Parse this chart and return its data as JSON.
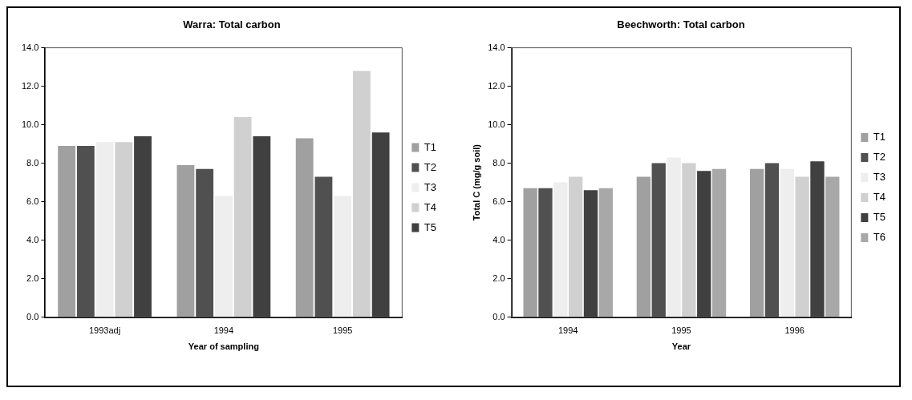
{
  "chart_data": [
    {
      "type": "bar",
      "title": "Warra: Total carbon",
      "xlabel": "Year of sampling",
      "categories": [
        "1993adj",
        "1994",
        "1995"
      ],
      "ylim": [
        0,
        14
      ],
      "yticks": [
        {
          "value": 0,
          "label": "0.0"
        },
        {
          "value": 2,
          "label": "2.0"
        },
        {
          "value": 4,
          "label": "4.0"
        },
        {
          "value": 6,
          "label": "6.0"
        },
        {
          "value": 8,
          "label": "8.0"
        },
        {
          "value": 10,
          "label": "10.0"
        },
        {
          "value": 12,
          "label": "12.0"
        },
        {
          "value": 14,
          "label": "14.0"
        }
      ],
      "grid": false,
      "legend": "right",
      "series": [
        {
          "name": "T1",
          "color": "#a0a0a0",
          "values": [
            8.9,
            7.9,
            9.3
          ]
        },
        {
          "name": "T2",
          "color": "#505050",
          "values": [
            8.9,
            7.7,
            7.3
          ]
        },
        {
          "name": "T3",
          "color": "#eeeeee",
          "values": [
            9.1,
            6.3,
            6.3
          ]
        },
        {
          "name": "T4",
          "color": "#d0d0d0",
          "values": [
            9.1,
            10.4,
            12.8
          ]
        },
        {
          "name": "T5",
          "color": "#404040",
          "values": [
            9.4,
            9.4,
            9.6
          ]
        }
      ]
    },
    {
      "type": "bar",
      "title": "Beechworth: Total carbon",
      "xlabel": "Year",
      "ylabel": "Total C (mg/g soil)",
      "categories": [
        "1994",
        "1995",
        "1996"
      ],
      "ylim": [
        0,
        14
      ],
      "yticks": [
        {
          "value": 0,
          "label": "0.0"
        },
        {
          "value": 2,
          "label": "2.0"
        },
        {
          "value": 4,
          "label": "4.0"
        },
        {
          "value": 6,
          "label": "6.0"
        },
        {
          "value": 8,
          "label": "8.0"
        },
        {
          "value": 10,
          "label": "10.0"
        },
        {
          "value": 12,
          "label": "12.0"
        },
        {
          "value": 14,
          "label": "14.0"
        }
      ],
      "grid": false,
      "legend": "right",
      "series": [
        {
          "name": "T1",
          "color": "#a0a0a0",
          "values": [
            6.7,
            7.3,
            7.7
          ]
        },
        {
          "name": "T2",
          "color": "#505050",
          "values": [
            6.7,
            8.0,
            8.0
          ]
        },
        {
          "name": "T3",
          "color": "#eeeeee",
          "values": [
            7.0,
            8.3,
            7.7
          ]
        },
        {
          "name": "T4",
          "color": "#d0d0d0",
          "values": [
            7.3,
            8.0,
            7.3
          ]
        },
        {
          "name": "T5",
          "color": "#404040",
          "values": [
            6.6,
            7.6,
            8.1
          ]
        },
        {
          "name": "T6",
          "color": "#a8a8a8",
          "values": [
            6.7,
            7.7,
            7.3
          ]
        }
      ]
    }
  ]
}
